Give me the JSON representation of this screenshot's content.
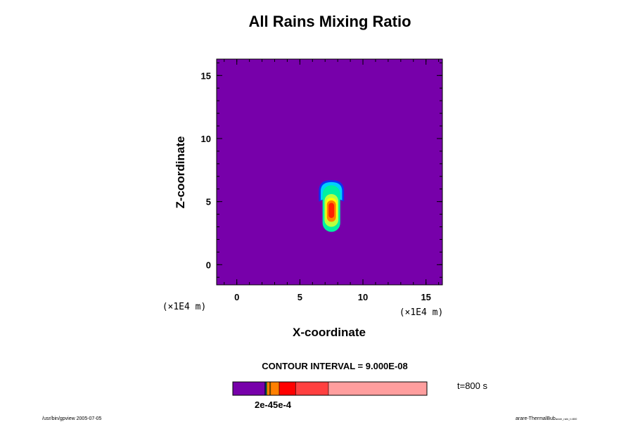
{
  "chart_data": {
    "type": "contour",
    "title": "All Rains Mixing Ratio",
    "xlabel": "X-coordinate",
    "ylabel": "Z-coordinate",
    "x_unit": "(×1E4 m)",
    "z_unit": "(×1E4 m)",
    "xlim": [
      -1.6,
      16.3
    ],
    "ylim": [
      -1.6,
      16.3
    ],
    "x_ticks": [
      "0",
      "5",
      "10",
      "15"
    ],
    "z_ticks": [
      "0",
      "5",
      "10",
      "15"
    ],
    "x_tick_values": [
      0,
      5,
      10,
      15
    ],
    "z_tick_values": [
      0,
      5,
      10,
      15
    ],
    "contour_interval_text": "CONTOUR INTERVAL = 9.000E-08",
    "time_text": "t=800 s",
    "colorbar_label_text": "2e-45e-4",
    "background_color": "#7700aa",
    "feature": {
      "center_x": 7.5,
      "regions": [
        {
          "color": "#1030f0",
          "z_bottom": 5.0,
          "z_top": 6.7,
          "half_width": 1.0,
          "sharp_bottom": true
        },
        {
          "color": "#00d0ff",
          "z_bottom": 5.1,
          "z_top": 6.55,
          "half_width": 0.85,
          "sharp_bottom": true
        },
        {
          "color": "#00f0a0",
          "z_bottom": 2.6,
          "z_top": 6.3,
          "half_width": 0.7,
          "sharp_bottom": false
        },
        {
          "color": "#b8ff40",
          "z_bottom": 3.0,
          "z_top": 5.6,
          "half_width": 0.55,
          "sharp_bottom": false
        },
        {
          "color": "#ffff00",
          "z_bottom": 3.4,
          "z_top": 5.3,
          "half_width": 0.45,
          "sharp_bottom": false
        },
        {
          "color": "#ff8000",
          "z_bottom": 3.4,
          "z_top": 5.1,
          "half_width": 0.36,
          "sharp_bottom": false
        },
        {
          "color": "#ff2000",
          "z_bottom": 3.7,
          "z_top": 4.9,
          "half_width": 0.22,
          "sharp_bottom": false
        }
      ]
    },
    "colorbar_segments": [
      {
        "color": "#7700aa",
        "weight": 45
      },
      {
        "color": "#1030f0",
        "weight": 1
      },
      {
        "color": "#00f0a0",
        "weight": 1
      },
      {
        "color": "#ffff00",
        "weight": 1
      },
      {
        "color": "#ff8000",
        "weight": 4
      },
      {
        "color": "#ffb000",
        "weight": 1
      },
      {
        "color": "#ff8000",
        "weight": 12
      },
      {
        "color": "#ff0000",
        "weight": 23
      },
      {
        "color": "#ff4040",
        "weight": 46
      },
      {
        "color": "#ff9e9e",
        "weight": 138
      }
    ]
  },
  "footer": {
    "left_text": "/usr/bin/gpview 2005-07-05",
    "right_main": "arare-ThermalBub",
    "right_sub": "arare_rain_t=800"
  }
}
